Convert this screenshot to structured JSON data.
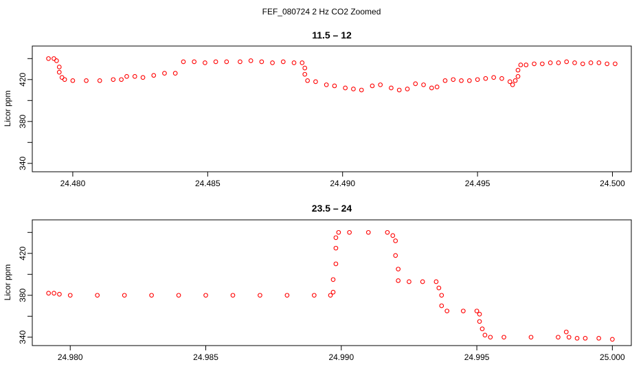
{
  "figure": {
    "suptitle": "FEF_080724  2 Hz CO2 Zoomed"
  },
  "chart_data": [
    {
      "type": "scatter",
      "title": "11.5 – 12",
      "xlabel": "",
      "ylabel": "Licor ppm",
      "xlim": [
        24.4785,
        24.5007
      ],
      "ylim": [
        332,
        452
      ],
      "xticks": [
        24.48,
        24.485,
        24.49,
        24.495,
        24.5
      ],
      "xtick_labels": [
        "24.480",
        "24.485",
        "24.490",
        "24.495",
        "24.500"
      ],
      "yticks": [
        340,
        360,
        380,
        400,
        420,
        440
      ],
      "ytick_labels": [
        "340",
        "",
        "380",
        "",
        "420",
        ""
      ],
      "marker_color": "#ff0000",
      "series": [
        {
          "points": [
            [
              24.4791,
              440
            ],
            [
              24.4793,
              440
            ],
            [
              24.4794,
              438
            ],
            [
              24.4795,
              432
            ],
            [
              24.4795,
              427
            ],
            [
              24.4796,
              422
            ],
            [
              24.4797,
              420
            ],
            [
              24.48,
              419
            ],
            [
              24.4805,
              419
            ],
            [
              24.481,
              419
            ],
            [
              24.4815,
              420
            ],
            [
              24.4818,
              420
            ],
            [
              24.482,
              423
            ],
            [
              24.4823,
              423
            ],
            [
              24.4826,
              422
            ],
            [
              24.483,
              424
            ],
            [
              24.4834,
              426
            ],
            [
              24.4838,
              426
            ],
            [
              24.4841,
              437
            ],
            [
              24.4845,
              437
            ],
            [
              24.4849,
              436
            ],
            [
              24.4853,
              437
            ],
            [
              24.4857,
              437
            ],
            [
              24.4862,
              437
            ],
            [
              24.4866,
              438
            ],
            [
              24.487,
              437
            ],
            [
              24.4874,
              436
            ],
            [
              24.4878,
              437
            ],
            [
              24.4882,
              436
            ],
            [
              24.4885,
              436
            ],
            [
              24.4886,
              431
            ],
            [
              24.4886,
              425
            ],
            [
              24.4887,
              419
            ],
            [
              24.489,
              418
            ],
            [
              24.4894,
              415
            ],
            [
              24.4897,
              414
            ],
            [
              24.4901,
              412
            ],
            [
              24.4904,
              411
            ],
            [
              24.4907,
              410
            ],
            [
              24.4911,
              414
            ],
            [
              24.4914,
              415
            ],
            [
              24.4918,
              412
            ],
            [
              24.4921,
              410
            ],
            [
              24.4924,
              411
            ],
            [
              24.4927,
              416
            ],
            [
              24.493,
              415
            ],
            [
              24.4933,
              412
            ],
            [
              24.4935,
              413
            ],
            [
              24.4938,
              419
            ],
            [
              24.4941,
              420
            ],
            [
              24.4944,
              419
            ],
            [
              24.4947,
              419
            ],
            [
              24.495,
              420
            ],
            [
              24.4953,
              421
            ],
            [
              24.4956,
              422
            ],
            [
              24.4959,
              421
            ],
            [
              24.4962,
              418
            ],
            [
              24.4963,
              415
            ],
            [
              24.4964,
              419
            ],
            [
              24.4965,
              423
            ],
            [
              24.4965,
              429
            ],
            [
              24.4966,
              434
            ],
            [
              24.4968,
              434
            ],
            [
              24.4971,
              435
            ],
            [
              24.4974,
              435
            ],
            [
              24.4977,
              436
            ],
            [
              24.498,
              436
            ],
            [
              24.4983,
              437
            ],
            [
              24.4986,
              436
            ],
            [
              24.4989,
              435
            ],
            [
              24.4992,
              436
            ],
            [
              24.4995,
              436
            ],
            [
              24.4998,
              435
            ],
            [
              24.5001,
              435
            ]
          ]
        }
      ]
    },
    {
      "type": "scatter",
      "title": "23.5 – 24",
      "xlabel": "",
      "ylabel": "Licor ppm",
      "xlim": [
        24.9786,
        25.0007
      ],
      "ylim": [
        332,
        452
      ],
      "xticks": [
        24.98,
        24.985,
        24.99,
        24.995,
        25.0
      ],
      "xtick_labels": [
        "24.980",
        "24.985",
        "24.990",
        "24.995",
        "25.000"
      ],
      "yticks": [
        340,
        360,
        380,
        400,
        420,
        440
      ],
      "ytick_labels": [
        "340",
        "",
        "380",
        "",
        "420",
        ""
      ],
      "marker_color": "#ff0000",
      "series": [
        {
          "points": [
            [
              24.9792,
              382
            ],
            [
              24.9794,
              382
            ],
            [
              24.9796,
              381
            ],
            [
              24.98,
              380
            ],
            [
              24.981,
              380
            ],
            [
              24.982,
              380
            ],
            [
              24.983,
              380
            ],
            [
              24.984,
              380
            ],
            [
              24.985,
              380
            ],
            [
              24.986,
              380
            ],
            [
              24.987,
              380
            ],
            [
              24.988,
              380
            ],
            [
              24.989,
              380
            ],
            [
              24.9896,
              380
            ],
            [
              24.9897,
              383
            ],
            [
              24.9897,
              395
            ],
            [
              24.9898,
              410
            ],
            [
              24.9898,
              425
            ],
            [
              24.9898,
              435
            ],
            [
              24.9899,
              440
            ],
            [
              24.9903,
              440
            ],
            [
              24.991,
              440
            ],
            [
              24.9917,
              440
            ],
            [
              24.9919,
              437
            ],
            [
              24.992,
              432
            ],
            [
              24.992,
              418
            ],
            [
              24.9921,
              405
            ],
            [
              24.9921,
              394
            ],
            [
              24.9925,
              393
            ],
            [
              24.993,
              393
            ],
            [
              24.9935,
              393
            ],
            [
              24.9936,
              387
            ],
            [
              24.9937,
              380
            ],
            [
              24.9937,
              370
            ],
            [
              24.9939,
              365
            ],
            [
              24.9945,
              365
            ],
            [
              24.995,
              365
            ],
            [
              24.9951,
              362
            ],
            [
              24.9951,
              355
            ],
            [
              24.9952,
              348
            ],
            [
              24.9953,
              342
            ],
            [
              24.9955,
              340
            ],
            [
              24.996,
              340
            ],
            [
              24.997,
              340
            ],
            [
              24.998,
              340
            ],
            [
              24.9983,
              345
            ],
            [
              24.9984,
              340
            ],
            [
              24.9987,
              339
            ],
            [
              24.999,
              339
            ],
            [
              24.9995,
              339
            ],
            [
              25.0,
              338
            ]
          ]
        }
      ]
    }
  ]
}
